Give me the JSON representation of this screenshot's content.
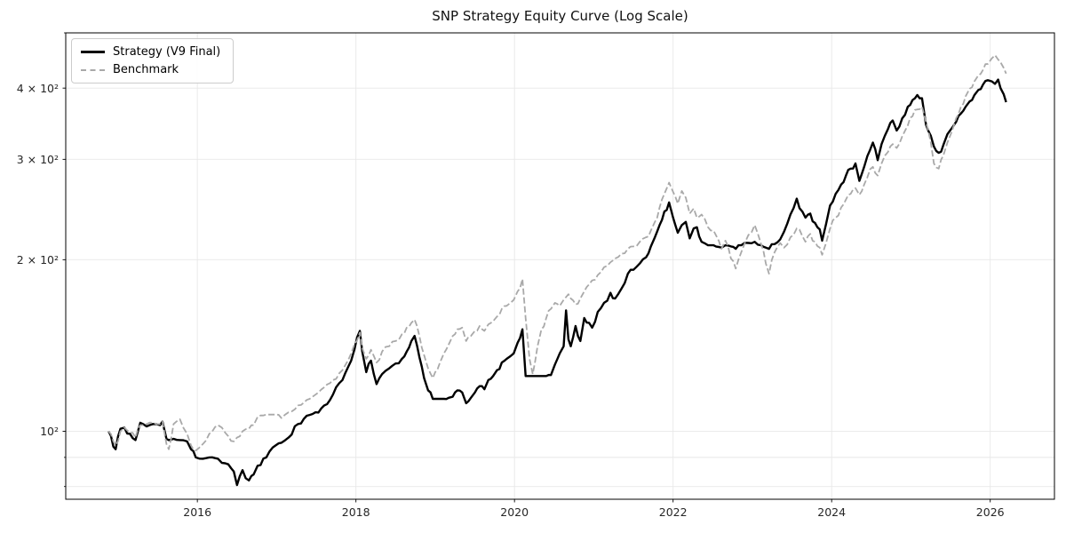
{
  "title": "SNP Strategy Equity Curve (Log Scale)",
  "legend": {
    "items": [
      {
        "label": "Strategy (V9 Final)",
        "color": "#000000",
        "style": "solid"
      },
      {
        "label": "Benchmark",
        "color": "#a9a9a9",
        "style": "dashed"
      }
    ]
  },
  "chart_data": {
    "type": "line",
    "title": "SNP Strategy Equity Curve (Log Scale)",
    "xlabel": "",
    "ylabel": "",
    "x_axis": {
      "scale": "linear",
      "lim": [
        2014.34,
        2026.81
      ],
      "ticks": [
        2016,
        2018,
        2020,
        2022,
        2024,
        2026
      ],
      "labels": [
        "2016",
        "2018",
        "2020",
        "2022",
        "2024",
        "2026"
      ]
    },
    "y_axis": {
      "scale": "log",
      "lim": [
        76,
        500
      ],
      "ticks": [
        100,
        200,
        300,
        400
      ],
      "tick_labels": [
        "10²",
        "2 × 10²",
        "3 × 10²",
        "4 × 10²"
      ],
      "minor_ticks": [
        80,
        90,
        500
      ]
    },
    "grid": {
      "on": true,
      "which": "both",
      "color": "#e8e8e8"
    },
    "background": "#ffffff",
    "spine_color": "#000000",
    "legend_position": "upper-left",
    "x": [
      2014.88,
      2014.94,
      2014.97,
      2015.03,
      2015.08,
      2015.15,
      2015.22,
      2015.28,
      2015.36,
      2015.44,
      2015.53,
      2015.56,
      2015.61,
      2015.64,
      2015.7,
      2015.78,
      2015.87,
      2015.92,
      2015.98,
      2016.07,
      2016.15,
      2016.26,
      2016.31,
      2016.39,
      2016.46,
      2016.5,
      2016.57,
      2016.65,
      2016.71,
      2016.76,
      2016.87,
      2016.99,
      2017.06,
      2017.15,
      2017.27,
      2017.38,
      2017.49,
      2017.6,
      2017.71,
      2017.83,
      2017.94,
      2017.98,
      2018.05,
      2018.08,
      2018.13,
      2018.19,
      2018.26,
      2018.33,
      2018.42,
      2018.5,
      2018.58,
      2018.64,
      2018.7,
      2018.74,
      2018.8,
      2018.86,
      2018.91,
      2018.97,
      2019.0,
      2019.06,
      2019.11,
      2019.17,
      2019.22,
      2019.28,
      2019.34,
      2019.39,
      2019.45,
      2019.5,
      2019.56,
      2019.62,
      2019.67,
      2019.73,
      2019.78,
      2019.84,
      2019.9,
      2019.95,
      2019.99,
      2020.04,
      2020.1,
      2020.14,
      2020.19,
      2020.23,
      2020.29,
      2020.34,
      2020.4,
      2020.46,
      2020.51,
      2020.57,
      2020.62,
      2020.65,
      2020.68,
      2020.71,
      2020.77,
      2020.83,
      2020.88,
      2020.94,
      2020.98,
      2021.05,
      2021.13,
      2021.21,
      2021.27,
      2021.35,
      2021.43,
      2021.5,
      2021.58,
      2021.66,
      2021.72,
      2021.77,
      2021.83,
      2021.89,
      2021.95,
      2022.0,
      2022.06,
      2022.11,
      2022.16,
      2022.21,
      2022.26,
      2022.3,
      2022.36,
      2022.44,
      2022.51,
      2022.61,
      2022.66,
      2022.73,
      2022.79,
      2022.86,
      2022.95,
      2023.03,
      2023.11,
      2023.17,
      2023.21,
      2023.28,
      2023.35,
      2023.4,
      2023.48,
      2023.56,
      2023.63,
      2023.67,
      2023.73,
      2023.79,
      2023.85,
      2023.88,
      2023.93,
      2023.98,
      2024.05,
      2024.12,
      2024.18,
      2024.24,
      2024.3,
      2024.35,
      2024.41,
      2024.45,
      2024.52,
      2024.58,
      2024.63,
      2024.71,
      2024.77,
      2024.82,
      2024.89,
      2024.96,
      2025.02,
      2025.08,
      2025.14,
      2025.19,
      2025.25,
      2025.29,
      2025.35,
      2025.41,
      2025.46,
      2025.52,
      2025.57,
      2025.63,
      2025.69,
      2025.74,
      2025.8,
      2025.85,
      2025.91,
      2025.97,
      2026.02,
      2026.06,
      2026.1,
      2026.13,
      2026.17,
      2026.2
    ],
    "series": [
      {
        "name": "Strategy (V9 Final)",
        "color": "#000000",
        "line_style": "solid",
        "line_width": 2.4,
        "values": [
          100,
          94,
          93,
          101,
          101.5,
          99,
          96.5,
          103.5,
          102,
          103,
          102.5,
          104,
          97,
          96.5,
          97,
          96.5,
          96,
          93,
          90,
          89.5,
          90,
          89.5,
          88,
          87.5,
          85,
          80.5,
          85.5,
          82,
          84,
          87,
          90,
          94.5,
          95.5,
          97.5,
          103,
          106.5,
          108,
          111,
          116,
          123,
          133,
          139,
          150,
          138,
          127,
          133,
          121,
          126,
          129,
          131.5,
          134,
          138,
          144,
          147,
          135,
          124,
          118,
          114,
          114,
          114,
          114,
          114.5,
          115,
          118,
          117,
          112,
          114.5,
          117,
          120,
          118.5,
          123,
          125,
          128,
          132,
          134,
          135.5,
          137,
          143,
          151,
          125,
          125,
          125,
          125,
          125,
          125,
          125.5,
          131,
          137,
          141,
          163,
          145,
          141,
          153,
          144,
          158,
          155,
          152,
          162,
          168,
          175,
          171,
          178,
          189,
          192,
          197,
          202,
          211,
          219,
          230,
          243,
          252,
          237,
          223,
          230,
          233,
          218,
          227,
          228,
          215,
          212,
          212,
          210,
          212,
          211,
          209,
          212,
          214,
          215,
          212,
          210,
          209,
          213,
          217,
          224,
          240,
          256,
          243,
          237,
          241,
          232,
          226,
          216,
          231,
          249,
          261,
          271,
          281,
          289,
          295,
          275,
          291,
          304,
          321,
          299,
          319,
          339,
          351,
          337,
          354,
          371,
          381,
          389,
          384,
          345,
          330,
          316,
          308,
          318,
          332,
          341,
          349,
          361,
          371,
          379,
          389,
          397,
          406,
          413,
          411,
          407,
          414,
          400,
          390,
          378
        ]
      },
      {
        "name": "Benchmark",
        "color": "#a9a9a9",
        "line_style": "dashed",
        "line_width": 1.8,
        "values": [
          100,
          96,
          94.5,
          100,
          101.5,
          99.5,
          97.5,
          102.5,
          103,
          103.5,
          103,
          104,
          95,
          93,
          103,
          105,
          99,
          94.5,
          92.5,
          95,
          99,
          102.5,
          101.5,
          98,
          96,
          97.5,
          100,
          101,
          102.5,
          106,
          107,
          107,
          105.5,
          108,
          111,
          113.5,
          116,
          119.5,
          123,
          128,
          137,
          142,
          149,
          140,
          134,
          139,
          132,
          138,
          141,
          144,
          148,
          152,
          155,
          157,
          147,
          136,
          129,
          124,
          127,
          132,
          137,
          142,
          147,
          151,
          152,
          144,
          147,
          150,
          153,
          150,
          154,
          156,
          159,
          164,
          166,
          168,
          170,
          176,
          185,
          158,
          134,
          126,
          141,
          151,
          158,
          164,
          168,
          166,
          170,
          172,
          174,
          171,
          167,
          171,
          176,
          181,
          184,
          188,
          194,
          198,
          201,
          205,
          209,
          211,
          215,
          219,
          225,
          233,
          247,
          261,
          273,
          263,
          251,
          264,
          257,
          241,
          246,
          237,
          240,
          228,
          225,
          209,
          216,
          201,
          193,
          206,
          221,
          230,
          213,
          197,
          189,
          206,
          214,
          210,
          219,
          227,
          220,
          215,
          222,
          215,
          210,
          204,
          214,
          227,
          237,
          247,
          255,
          261,
          267,
          260,
          271,
          279,
          291,
          281,
          295,
          309,
          319,
          314,
          329,
          344,
          357,
          367,
          371,
          349,
          321,
          295,
          289,
          305,
          321,
          337,
          354,
          371,
          387,
          399,
          411,
          421,
          431,
          441,
          451,
          457,
          449,
          444,
          434,
          424
        ]
      }
    ]
  }
}
